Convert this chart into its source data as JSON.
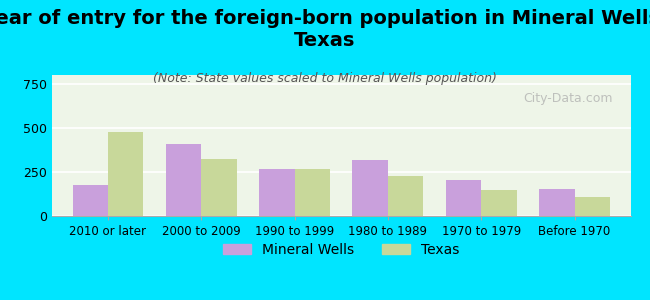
{
  "title": "Year of entry for the foreign-born population in Mineral Wells,\nTexas",
  "subtitle": "(Note: State values scaled to Mineral Wells population)",
  "categories": [
    "2010 or later",
    "2000 to 2009",
    "1990 to 1999",
    "1980 to 1989",
    "1970 to 1979",
    "Before 1970"
  ],
  "mineral_wells": [
    175,
    410,
    265,
    315,
    205,
    155
  ],
  "texas": [
    475,
    325,
    265,
    225,
    145,
    110
  ],
  "mineral_wells_color": "#c9a0dc",
  "texas_color": "#c8d89a",
  "background_color": "#00e5ff",
  "plot_bg_gradient_top": "#e8f5e0",
  "plot_bg_gradient_bottom": "#ffffff",
  "ylim": [
    0,
    800
  ],
  "yticks": [
    0,
    250,
    500,
    750
  ],
  "bar_width": 0.38,
  "title_fontsize": 14,
  "subtitle_fontsize": 9,
  "legend_fontsize": 10,
  "watermark": "City-Data.com"
}
